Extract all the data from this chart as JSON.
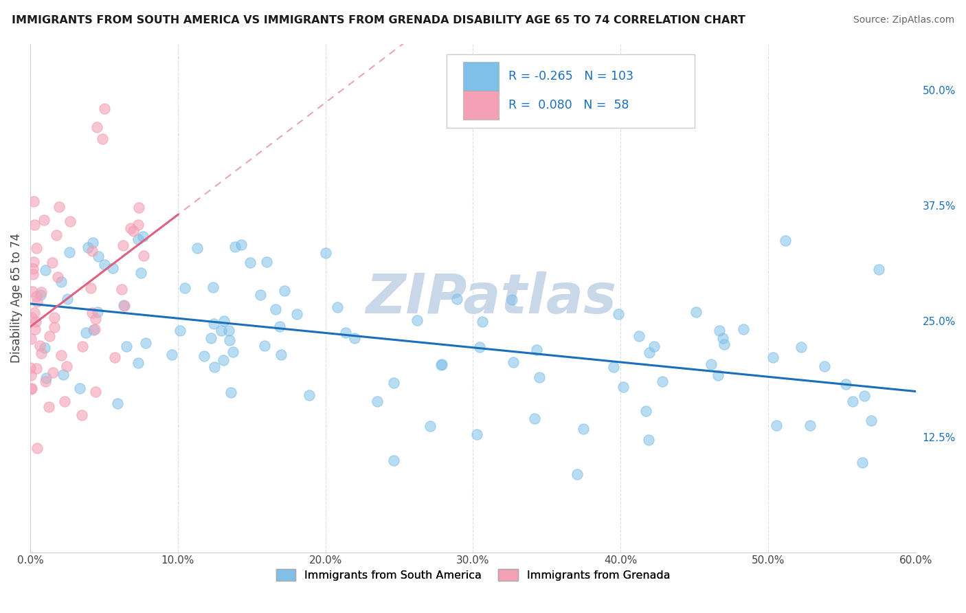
{
  "title": "IMMIGRANTS FROM SOUTH AMERICA VS IMMIGRANTS FROM GRENADA DISABILITY AGE 65 TO 74 CORRELATION CHART",
  "source": "Source: ZipAtlas.com",
  "ylabel": "Disability Age 65 to 74",
  "xlim": [
    0.0,
    0.6
  ],
  "ylim": [
    0.0,
    0.55
  ],
  "xticks": [
    0.0,
    0.1,
    0.2,
    0.3,
    0.4,
    0.5,
    0.6
  ],
  "xticklabels": [
    "0.0%",
    "10.0%",
    "20.0%",
    "30.0%",
    "40.0%",
    "50.0%",
    "60.0%"
  ],
  "yticks_right": [
    0.125,
    0.25,
    0.375,
    0.5
  ],
  "ytick_labels_right": [
    "12.5%",
    "25.0%",
    "37.5%",
    "50.0%"
  ],
  "R_blue": -0.265,
  "N_blue": 103,
  "R_pink": 0.08,
  "N_pink": 58,
  "blue_color": "#7ec0e8",
  "pink_color": "#f4a0b5",
  "blue_line_color": "#1a6fbd",
  "pink_line_color": "#e06080",
  "pink_dash_color": "#e08090",
  "watermark": "ZIPatlas",
  "watermark_color": "#c8d8e8",
  "background_color": "#ffffff",
  "grid_color": "#dddddd",
  "legend_label_color": "#1a6fbd",
  "bottom_legend": [
    "Immigrants from South America",
    "Immigrants from Grenada"
  ]
}
